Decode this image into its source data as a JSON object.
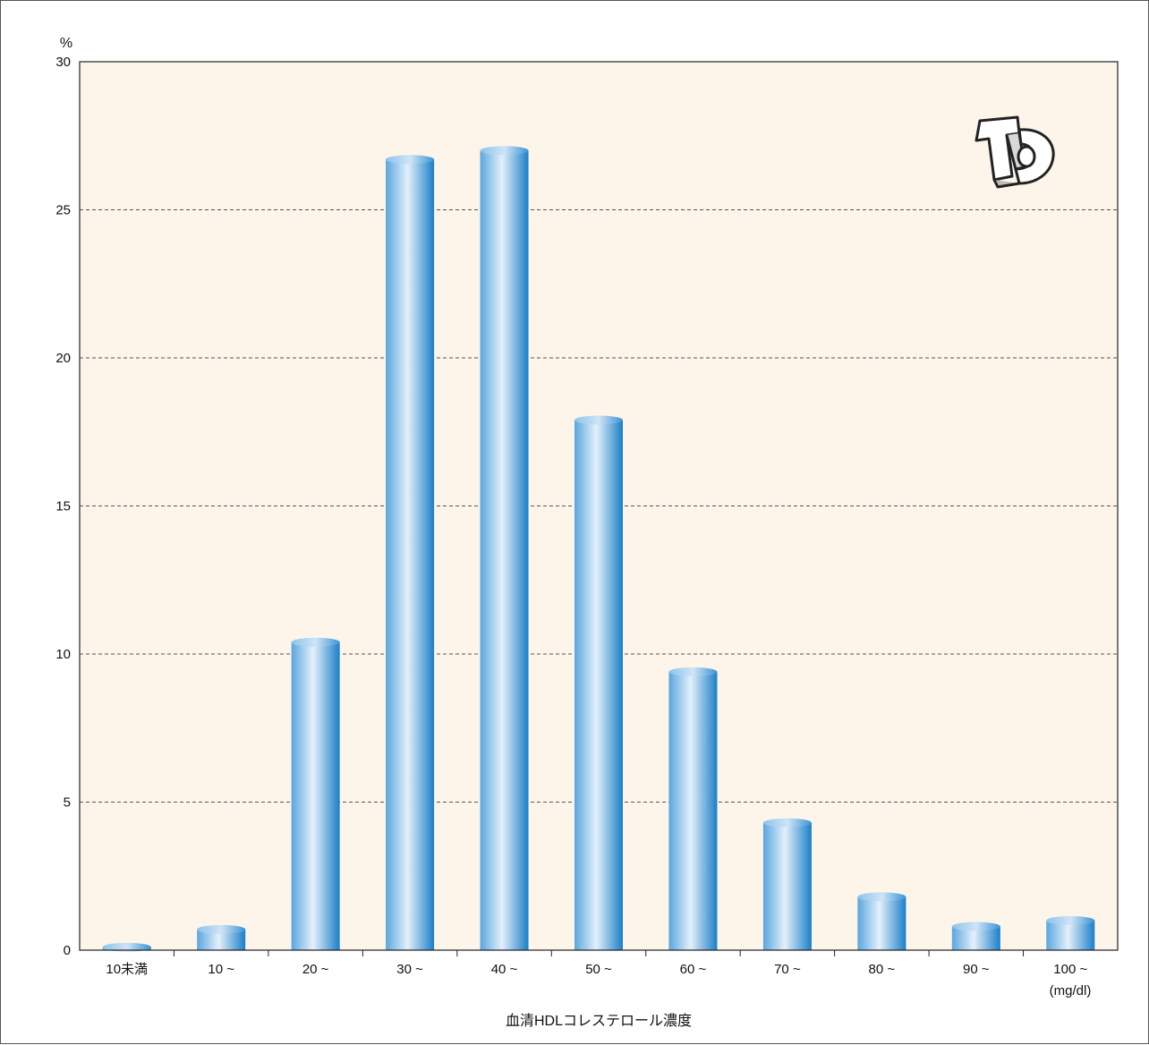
{
  "chart_data": {
    "type": "bar",
    "title": "",
    "xlabel": "血清HDLコレステロール濃度",
    "ylabel": "%",
    "x_unit": "(mg/dl)",
    "categories": [
      "10未満",
      "10 ~",
      "20 ~",
      "30 ~",
      "40 ~",
      "50 ~",
      "60 ~",
      "70 ~",
      "80 ~",
      "90 ~",
      "100 ~"
    ],
    "values": [
      0.1,
      0.7,
      10.4,
      26.7,
      27.0,
      17.9,
      9.4,
      4.3,
      1.8,
      0.8,
      1.0
    ],
    "ylim": [
      0,
      30
    ],
    "yticks": [
      0,
      5,
      10,
      15,
      20,
      25,
      30
    ],
    "grid": true,
    "legend": "none",
    "colors": {
      "plot_background": "#fdf5ea",
      "bar_dark": "#1a7fc8",
      "bar_light": "#ddebf8",
      "gridline": "#555555",
      "axis": "#222222"
    },
    "logo_icon": "td-logo-icon"
  }
}
